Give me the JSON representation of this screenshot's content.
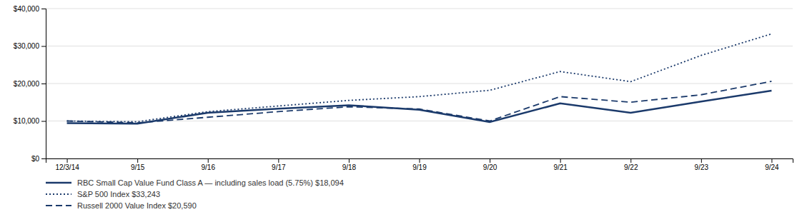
{
  "chart_data": {
    "type": "line",
    "categories": [
      "12/3/14",
      "9/15",
      "9/16",
      "9/17",
      "9/18",
      "9/19",
      "9/20",
      "9/21",
      "9/22",
      "9/23",
      "9/24"
    ],
    "series": [
      {
        "name": "RBC Small Cap Value Fund Class A — including sales load (5.75%) $18,094",
        "color": "#1b3a6b",
        "line_style": "solid",
        "values": [
          9425,
          9300,
          12200,
          13300,
          14200,
          13000,
          9700,
          14700,
          12200,
          15200,
          18094
        ]
      },
      {
        "name": "S&P 500 Index $33,243",
        "color": "#1b3a6b",
        "line_style": "dotted",
        "values": [
          10000,
          9800,
          12500,
          14000,
          15500,
          16500,
          18200,
          23200,
          20500,
          27500,
          33243
        ]
      },
      {
        "name": "Russell 2000 Value Index $20,590",
        "color": "#1b3a6b",
        "line_style": "dashed",
        "values": [
          10000,
          9500,
          11000,
          12500,
          13800,
          13200,
          10000,
          16500,
          15000,
          17000,
          20590
        ]
      }
    ],
    "ylim": [
      0,
      40000
    ],
    "yticks": [
      {
        "value": 0,
        "label": "$0"
      },
      {
        "value": 10000,
        "label": "$10,000"
      },
      {
        "value": 20000,
        "label": "$20,000"
      },
      {
        "value": 30000,
        "label": "$30,000"
      },
      {
        "value": 40000,
        "label": "$40,000"
      }
    ],
    "grid": true,
    "legend": "bottom"
  }
}
